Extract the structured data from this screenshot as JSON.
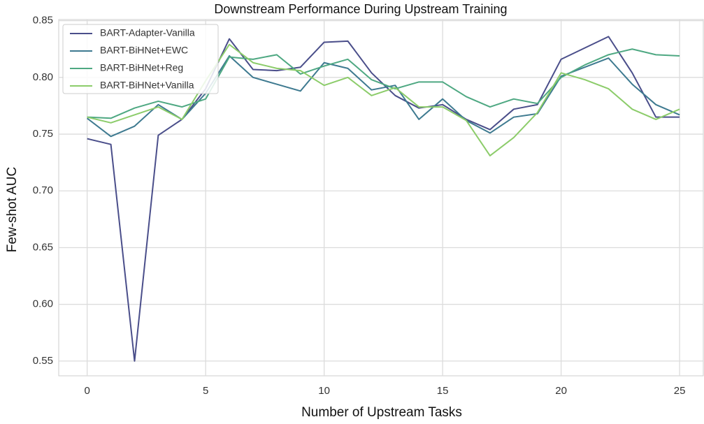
{
  "chart_data": {
    "type": "line",
    "title": "Downstream Performance During Upstream Training",
    "x_label": "Number of Upstream Tasks",
    "y_label": "Few-shot AUC",
    "x": [
      0,
      1,
      2,
      3,
      4,
      5,
      6,
      7,
      8,
      9,
      10,
      11,
      12,
      13,
      14,
      15,
      16,
      17,
      18,
      19,
      20,
      21,
      22,
      23,
      24,
      25
    ],
    "series": [
      {
        "name": "BART-Adapter-Vanilla",
        "color": "#4a4e8a",
        "values": [
          0.746,
          0.741,
          0.55,
          0.749,
          0.763,
          0.79,
          0.834,
          0.807,
          0.806,
          0.809,
          0.831,
          0.832,
          0.804,
          0.784,
          0.773,
          0.776,
          0.763,
          0.754,
          0.772,
          0.776,
          0.816,
          0.826,
          0.836,
          0.804,
          0.765,
          0.765
        ]
      },
      {
        "name": "BART-BiHNet+EWC",
        "color": "#3e7a90",
        "values": [
          0.764,
          0.748,
          0.757,
          0.776,
          0.763,
          0.786,
          0.819,
          0.8,
          0.794,
          0.788,
          0.813,
          0.808,
          0.789,
          0.793,
          0.763,
          0.781,
          0.762,
          0.751,
          0.765,
          0.768,
          0.801,
          0.809,
          0.817,
          0.794,
          0.776,
          0.767
        ]
      },
      {
        "name": "BART-BiHNet+Reg",
        "color": "#4ea882",
        "values": [
          0.765,
          0.764,
          0.773,
          0.779,
          0.774,
          0.781,
          0.818,
          0.816,
          0.82,
          0.803,
          0.81,
          0.816,
          0.798,
          0.79,
          0.796,
          0.796,
          0.783,
          0.774,
          0.781,
          0.777,
          0.8,
          0.811,
          0.82,
          0.825,
          0.82,
          0.819
        ]
      },
      {
        "name": "BART-BiHNet+Vanilla",
        "color": "#8ccc6a",
        "values": [
          0.765,
          0.76,
          0.767,
          0.774,
          0.763,
          0.797,
          0.829,
          0.813,
          0.808,
          0.806,
          0.793,
          0.8,
          0.784,
          0.791,
          0.774,
          0.774,
          0.762,
          0.731,
          0.747,
          0.769,
          0.804,
          0.798,
          0.79,
          0.772,
          0.763,
          0.772
        ]
      }
    ],
    "xlim": [
      -1.2,
      26
    ],
    "ylim": [
      0.537,
      0.851
    ],
    "xticks": [
      0,
      5,
      10,
      15,
      20,
      25
    ],
    "yticks": [
      0.55,
      {
        "value": 0.6,
        "label": "0.60"
      },
      0.65,
      {
        "value": 0.7,
        "label": "0.70"
      },
      0.75,
      {
        "value": 0.8,
        "label": "0.80"
      },
      0.85
    ],
    "grid": true,
    "legend": "upper left"
  }
}
